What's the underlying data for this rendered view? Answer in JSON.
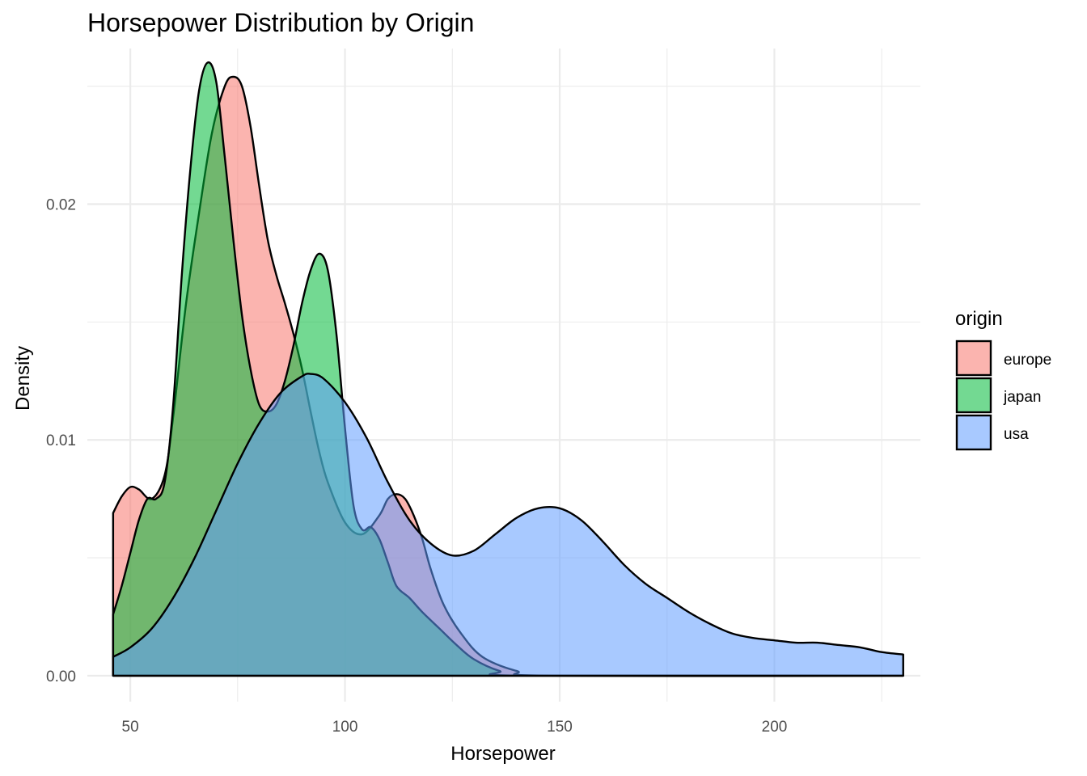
{
  "chart_data": {
    "type": "area",
    "title": "Horsepower Distribution by Origin",
    "xlabel": "Horsepower",
    "ylabel": "Density",
    "xlim": [
      40,
      234
    ],
    "ylim": [
      -0.0011,
      0.0266
    ],
    "x_ticks": [
      50,
      100,
      150,
      200
    ],
    "x_minor_ticks": [
      75,
      125,
      175,
      225
    ],
    "y_ticks": [
      0.0,
      0.01,
      0.02
    ],
    "y_tick_labels": [
      "0.00",
      "0.01",
      "0.02"
    ],
    "y_minor_ticks": [
      0.005,
      0.015,
      0.025
    ],
    "grid": true,
    "legend": {
      "title": "origin",
      "placement": "right"
    },
    "series": [
      {
        "name": "europe",
        "color": "#F8766D",
        "points": [
          [
            46,
            0.0069
          ],
          [
            48,
            0.0076
          ],
          [
            50,
            0.008
          ],
          [
            52,
            0.0079
          ],
          [
            55,
            0.0075
          ],
          [
            58,
            0.0085
          ],
          [
            60,
            0.011
          ],
          [
            63,
            0.0158
          ],
          [
            66,
            0.0196
          ],
          [
            69,
            0.023
          ],
          [
            72,
            0.025
          ],
          [
            74,
            0.0254
          ],
          [
            76,
            0.025
          ],
          [
            78,
            0.0233
          ],
          [
            80,
            0.0208
          ],
          [
            82,
            0.0185
          ],
          [
            84,
            0.017
          ],
          [
            86,
            0.0158
          ],
          [
            88,
            0.0145
          ],
          [
            90,
            0.013
          ],
          [
            92,
            0.0112
          ],
          [
            94,
            0.0095
          ],
          [
            96,
            0.0082
          ],
          [
            100,
            0.0065
          ],
          [
            104,
            0.006
          ],
          [
            108,
            0.0068
          ],
          [
            110,
            0.0075
          ],
          [
            112,
            0.0077
          ],
          [
            114,
            0.0075
          ],
          [
            116,
            0.0068
          ],
          [
            118,
            0.0058
          ],
          [
            120,
            0.0045
          ],
          [
            123,
            0.003
          ],
          [
            127,
            0.0018
          ],
          [
            132,
            0.0008
          ],
          [
            140,
            0.0002
          ],
          [
            148,
            0.0
          ],
          [
            230,
            0.0
          ]
        ]
      },
      {
        "name": "japan",
        "color": "#00BA38",
        "points": [
          [
            46,
            0.0026
          ],
          [
            48,
            0.0038
          ],
          [
            50,
            0.0052
          ],
          [
            52,
            0.0066
          ],
          [
            54,
            0.0075
          ],
          [
            56,
            0.0075
          ],
          [
            58,
            0.0082
          ],
          [
            60,
            0.0115
          ],
          [
            62,
            0.017
          ],
          [
            64,
            0.0215
          ],
          [
            66,
            0.0248
          ],
          [
            68,
            0.026
          ],
          [
            70,
            0.0252
          ],
          [
            72,
            0.022
          ],
          [
            74,
            0.0185
          ],
          [
            76,
            0.0153
          ],
          [
            78,
            0.013
          ],
          [
            80,
            0.0115
          ],
          [
            82,
            0.0112
          ],
          [
            84,
            0.0115
          ],
          [
            86,
            0.0125
          ],
          [
            88,
            0.014
          ],
          [
            90,
            0.0158
          ],
          [
            92,
            0.0172
          ],
          [
            94,
            0.0179
          ],
          [
            96,
            0.0172
          ],
          [
            98,
            0.0145
          ],
          [
            100,
            0.0105
          ],
          [
            102,
            0.0072
          ],
          [
            104,
            0.0062
          ],
          [
            106,
            0.0063
          ],
          [
            108,
            0.0058
          ],
          [
            110,
            0.0048
          ],
          [
            112,
            0.0038
          ],
          [
            115,
            0.0033
          ],
          [
            118,
            0.0027
          ],
          [
            122,
            0.002
          ],
          [
            126,
            0.0013
          ],
          [
            130,
            0.0007
          ],
          [
            136,
            0.0002
          ],
          [
            142,
            0.0
          ],
          [
            230,
            0.0
          ]
        ]
      },
      {
        "name": "usa",
        "color": "#619CFF",
        "points": [
          [
            46,
            0.0008
          ],
          [
            50,
            0.0012
          ],
          [
            55,
            0.002
          ],
          [
            60,
            0.0033
          ],
          [
            65,
            0.005
          ],
          [
            70,
            0.007
          ],
          [
            75,
            0.009
          ],
          [
            80,
            0.0107
          ],
          [
            85,
            0.012
          ],
          [
            90,
            0.0127
          ],
          [
            92,
            0.0128
          ],
          [
            95,
            0.0126
          ],
          [
            100,
            0.0116
          ],
          [
            105,
            0.0101
          ],
          [
            110,
            0.0082
          ],
          [
            115,
            0.0066
          ],
          [
            120,
            0.0056
          ],
          [
            125,
            0.0051
          ],
          [
            130,
            0.0053
          ],
          [
            135,
            0.006
          ],
          [
            140,
            0.0067
          ],
          [
            145,
            0.0071
          ],
          [
            150,
            0.0071
          ],
          [
            155,
            0.0066
          ],
          [
            160,
            0.0057
          ],
          [
            165,
            0.0047
          ],
          [
            170,
            0.0039
          ],
          [
            175,
            0.0033
          ],
          [
            180,
            0.0027
          ],
          [
            185,
            0.0022
          ],
          [
            190,
            0.0018
          ],
          [
            195,
            0.0016
          ],
          [
            200,
            0.0015
          ],
          [
            205,
            0.0014
          ],
          [
            210,
            0.0014
          ],
          [
            215,
            0.0013
          ],
          [
            220,
            0.0012
          ],
          [
            225,
            0.001
          ],
          [
            230,
            0.0009
          ]
        ]
      }
    ]
  }
}
